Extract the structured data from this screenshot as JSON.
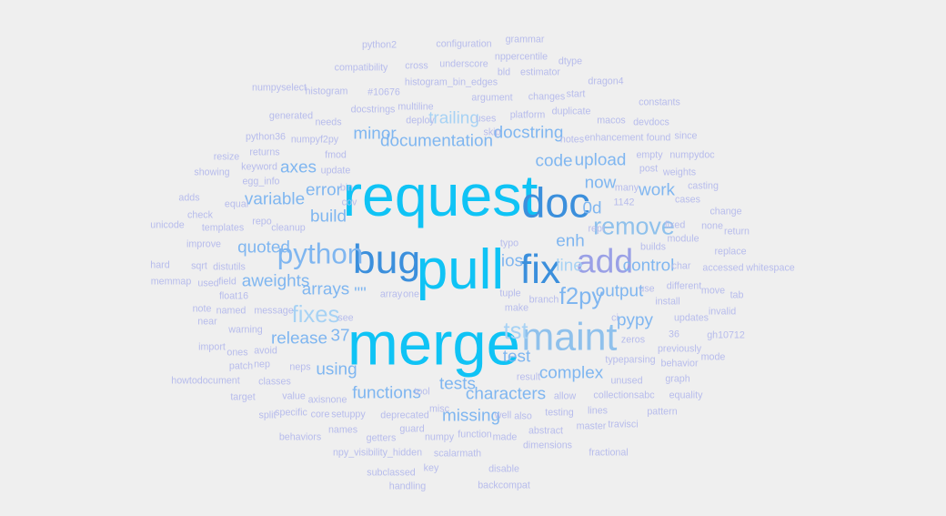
{
  "palette": [
    "#0fc3f5",
    "#3b8fdc",
    "#8fc1ec",
    "#9aa0e6",
    "#7fb6f0",
    "#b7bcec",
    "#a7d2f4",
    "#6f97dd"
  ],
  "words": [
    {
      "text": "merge",
      "w": 1.0,
      "c": 0
    },
    {
      "text": "request",
      "w": 0.95,
      "c": 0
    },
    {
      "text": "pull",
      "w": 0.9,
      "c": 0
    },
    {
      "text": "doc",
      "w": 0.62,
      "c": 1
    },
    {
      "text": "bug",
      "w": 0.58,
      "c": 1
    },
    {
      "text": "fix",
      "w": 0.58,
      "c": 1
    },
    {
      "text": "maint",
      "w": 0.55,
      "c": 2
    },
    {
      "text": "add",
      "w": 0.45,
      "c": 3
    },
    {
      "text": "python",
      "w": 0.35,
      "c": 4
    },
    {
      "text": "remove",
      "w": 0.27,
      "c": 2
    },
    {
      "text": "fixes",
      "w": 0.25,
      "c": 6
    },
    {
      "text": "f2py",
      "w": 0.25,
      "c": 4
    },
    {
      "text": "tst",
      "w": 0.25,
      "c": 6
    },
    {
      "text": "documentation",
      "w": 0.14,
      "c": 4
    },
    {
      "text": "docstring",
      "w": 0.14,
      "c": 4
    },
    {
      "text": "trailing",
      "w": 0.14,
      "c": 6
    },
    {
      "text": "minor",
      "w": 0.14,
      "c": 4
    },
    {
      "text": "upload",
      "w": 0.14,
      "c": 4
    },
    {
      "text": "code",
      "w": 0.14,
      "c": 4
    },
    {
      "text": "axes",
      "w": 0.14,
      "c": 4
    },
    {
      "text": "error",
      "w": 0.14,
      "c": 4
    },
    {
      "text": "variable",
      "w": 0.14,
      "c": 4
    },
    {
      "text": "build",
      "w": 0.14,
      "c": 4
    },
    {
      "text": "now",
      "w": 0.14,
      "c": 4
    },
    {
      "text": "work",
      "w": 0.14,
      "c": 4
    },
    {
      "text": "0d",
      "w": 0.14,
      "c": 4
    },
    {
      "text": "enh",
      "w": 0.14,
      "c": 4
    },
    {
      "text": "quoted",
      "w": 0.14,
      "c": 4
    },
    {
      "text": "aweights",
      "w": 0.14,
      "c": 4
    },
    {
      "text": "arrays",
      "w": 0.14,
      "c": 4
    },
    {
      "text": "control",
      "w": 0.14,
      "c": 4
    },
    {
      "text": "line",
      "w": 0.14,
      "c": 6
    },
    {
      "text": "ios",
      "w": 0.14,
      "c": 4
    },
    {
      "text": "output",
      "w": 0.14,
      "c": 4
    },
    {
      "text": "pypy",
      "w": 0.14,
      "c": 4
    },
    {
      "text": "release",
      "w": 0.14,
      "c": 4
    },
    {
      "text": "37",
      "w": 0.14,
      "c": 4
    },
    {
      "text": "test",
      "w": 0.14,
      "c": 4
    },
    {
      "text": "using",
      "w": 0.14,
      "c": 4
    },
    {
      "text": "complex",
      "w": 0.14,
      "c": 4
    },
    {
      "text": "tests",
      "w": 0.14,
      "c": 4
    },
    {
      "text": "functions",
      "w": 0.14,
      "c": 4
    },
    {
      "text": "characters",
      "w": 0.14,
      "c": 4
    },
    {
      "text": "missing",
      "w": 0.14,
      "c": 4
    },
    {
      "text": "\"\"",
      "w": 0.14,
      "c": 4
    },
    {
      "text": "python2",
      "w": 0.02,
      "c": 5
    },
    {
      "text": "configuration",
      "w": 0.02,
      "c": 5
    },
    {
      "text": "grammar",
      "w": 0.02,
      "c": 5
    },
    {
      "text": "compatibility",
      "w": 0.02,
      "c": 5
    },
    {
      "text": "cross",
      "w": 0.02,
      "c": 5
    },
    {
      "text": "underscore",
      "w": 0.02,
      "c": 5
    },
    {
      "text": "nppercentile",
      "w": 0.02,
      "c": 5
    },
    {
      "text": "dtype",
      "w": 0.02,
      "c": 5
    },
    {
      "text": "bld",
      "w": 0.02,
      "c": 5
    },
    {
      "text": "estimator",
      "w": 0.02,
      "c": 5
    },
    {
      "text": "histogram_bin_edges",
      "w": 0.02,
      "c": 5
    },
    {
      "text": "dragon4",
      "w": 0.02,
      "c": 5
    },
    {
      "text": "numpyselect",
      "w": 0.02,
      "c": 5
    },
    {
      "text": "histogram",
      "w": 0.02,
      "c": 5
    },
    {
      "text": "#10676",
      "w": 0.02,
      "c": 5
    },
    {
      "text": "argument",
      "w": 0.02,
      "c": 5
    },
    {
      "text": "changes",
      "w": 0.02,
      "c": 5
    },
    {
      "text": "start",
      "w": 0.02,
      "c": 5
    },
    {
      "text": "constants",
      "w": 0.02,
      "c": 5
    },
    {
      "text": "multiline",
      "w": 0.02,
      "c": 5
    },
    {
      "text": "docstrings",
      "w": 0.02,
      "c": 5
    },
    {
      "text": "generated",
      "w": 0.02,
      "c": 5
    },
    {
      "text": "needs",
      "w": 0.02,
      "c": 5
    },
    {
      "text": "deploy",
      "w": 0.02,
      "c": 5
    },
    {
      "text": "uses",
      "w": 0.02,
      "c": 5
    },
    {
      "text": "platform",
      "w": 0.02,
      "c": 5
    },
    {
      "text": "duplicate",
      "w": 0.02,
      "c": 5
    },
    {
      "text": "macos",
      "w": 0.02,
      "c": 5
    },
    {
      "text": "devdocs",
      "w": 0.02,
      "c": 5
    },
    {
      "text": "python36",
      "w": 0.02,
      "c": 5
    },
    {
      "text": "numpyf2py",
      "w": 0.02,
      "c": 5
    },
    {
      "text": "skip",
      "w": 0.02,
      "c": 5
    },
    {
      "text": "notes",
      "w": 0.02,
      "c": 5
    },
    {
      "text": "enhancement",
      "w": 0.02,
      "c": 5
    },
    {
      "text": "found",
      "w": 0.02,
      "c": 5
    },
    {
      "text": "since",
      "w": 0.02,
      "c": 5
    },
    {
      "text": "resize",
      "w": 0.02,
      "c": 5
    },
    {
      "text": "returns",
      "w": 0.02,
      "c": 5
    },
    {
      "text": "fmod",
      "w": 0.02,
      "c": 5
    },
    {
      "text": "empty",
      "w": 0.02,
      "c": 5
    },
    {
      "text": "numpydoc",
      "w": 0.02,
      "c": 5
    },
    {
      "text": "showing",
      "w": 0.02,
      "c": 5
    },
    {
      "text": "keyword",
      "w": 0.02,
      "c": 5
    },
    {
      "text": "update",
      "w": 0.02,
      "c": 5
    },
    {
      "text": "post",
      "w": 0.02,
      "c": 5
    },
    {
      "text": "weights",
      "w": 0.02,
      "c": 5
    },
    {
      "text": "egg_info",
      "w": 0.02,
      "c": 5
    },
    {
      "text": "bin",
      "w": 0.02,
      "c": 5
    },
    {
      "text": "many",
      "w": 0.02,
      "c": 5
    },
    {
      "text": "casting",
      "w": 0.02,
      "c": 5
    },
    {
      "text": "adds",
      "w": 0.02,
      "c": 5
    },
    {
      "text": "equal",
      "w": 0.02,
      "c": 5
    },
    {
      "text": "cov",
      "w": 0.02,
      "c": 5
    },
    {
      "text": "1142",
      "w": 0.02,
      "c": 5
    },
    {
      "text": "cases",
      "w": 0.02,
      "c": 5
    },
    {
      "text": "check",
      "w": 0.02,
      "c": 5
    },
    {
      "text": "change",
      "w": 0.02,
      "c": 5
    },
    {
      "text": "unicode",
      "w": 0.02,
      "c": 5
    },
    {
      "text": "templates",
      "w": 0.02,
      "c": 5
    },
    {
      "text": "repo",
      "w": 0.02,
      "c": 5
    },
    {
      "text": "cleanup",
      "w": 0.02,
      "c": 5
    },
    {
      "text": "repr",
      "w": 0.02,
      "c": 5
    },
    {
      "text": "fixed",
      "w": 0.02,
      "c": 5
    },
    {
      "text": "none",
      "w": 0.02,
      "c": 5
    },
    {
      "text": "return",
      "w": 0.02,
      "c": 5
    },
    {
      "text": "improve",
      "w": 0.02,
      "c": 5
    },
    {
      "text": "typo",
      "w": 0.02,
      "c": 5
    },
    {
      "text": "module",
      "w": 0.02,
      "c": 5
    },
    {
      "text": "builds",
      "w": 0.02,
      "c": 5
    },
    {
      "text": "replace",
      "w": 0.02,
      "c": 5
    },
    {
      "text": "hard",
      "w": 0.02,
      "c": 5
    },
    {
      "text": "sqrt",
      "w": 0.02,
      "c": 5
    },
    {
      "text": "distutils",
      "w": 0.02,
      "c": 5
    },
    {
      "text": "char",
      "w": 0.02,
      "c": 5
    },
    {
      "text": "accessed",
      "w": 0.02,
      "c": 5
    },
    {
      "text": "whitespace",
      "w": 0.02,
      "c": 5
    },
    {
      "text": "memmap",
      "w": 0.02,
      "c": 5
    },
    {
      "text": "used",
      "w": 0.02,
      "c": 5
    },
    {
      "text": "field",
      "w": 0.02,
      "c": 5
    },
    {
      "text": "use",
      "w": 0.02,
      "c": 5
    },
    {
      "text": "different",
      "w": 0.02,
      "c": 5
    },
    {
      "text": "move",
      "w": 0.02,
      "c": 5
    },
    {
      "text": "float16",
      "w": 0.02,
      "c": 5
    },
    {
      "text": "array",
      "w": 0.02,
      "c": 5
    },
    {
      "text": "one",
      "w": 0.02,
      "c": 5
    },
    {
      "text": "tuple",
      "w": 0.02,
      "c": 5
    },
    {
      "text": "tab",
      "w": 0.02,
      "c": 5
    },
    {
      "text": "branch",
      "w": 0.02,
      "c": 5
    },
    {
      "text": "install",
      "w": 0.02,
      "c": 5
    },
    {
      "text": "note",
      "w": 0.02,
      "c": 5
    },
    {
      "text": "named",
      "w": 0.02,
      "c": 5
    },
    {
      "text": "message",
      "w": 0.02,
      "c": 5
    },
    {
      "text": "make",
      "w": 0.02,
      "c": 5
    },
    {
      "text": "invalid",
      "w": 0.02,
      "c": 5
    },
    {
      "text": "near",
      "w": 0.02,
      "c": 5
    },
    {
      "text": "see",
      "w": 0.02,
      "c": 5
    },
    {
      "text": "ci",
      "w": 0.02,
      "c": 5
    },
    {
      "text": "updates",
      "w": 0.02,
      "c": 5
    },
    {
      "text": "warning",
      "w": 0.02,
      "c": 5
    },
    {
      "text": "36",
      "w": 0.02,
      "c": 5
    },
    {
      "text": "gh10712",
      "w": 0.02,
      "c": 5
    },
    {
      "text": "zeros",
      "w": 0.02,
      "c": 5
    },
    {
      "text": "import",
      "w": 0.02,
      "c": 5
    },
    {
      "text": "ones",
      "w": 0.02,
      "c": 5
    },
    {
      "text": "avoid",
      "w": 0.02,
      "c": 5
    },
    {
      "text": "previously",
      "w": 0.02,
      "c": 5
    },
    {
      "text": "typeparsing",
      "w": 0.02,
      "c": 5
    },
    {
      "text": "mode",
      "w": 0.02,
      "c": 5
    },
    {
      "text": "patch",
      "w": 0.02,
      "c": 5
    },
    {
      "text": "nep",
      "w": 0.02,
      "c": 5
    },
    {
      "text": "neps",
      "w": 0.02,
      "c": 5
    },
    {
      "text": "behavior",
      "w": 0.02,
      "c": 5
    },
    {
      "text": "howtodocument",
      "w": 0.02,
      "c": 5
    },
    {
      "text": "classes",
      "w": 0.02,
      "c": 5
    },
    {
      "text": "result",
      "w": 0.02,
      "c": 5
    },
    {
      "text": "unused",
      "w": 0.02,
      "c": 5
    },
    {
      "text": "graph",
      "w": 0.02,
      "c": 5
    },
    {
      "text": "target",
      "w": 0.02,
      "c": 5
    },
    {
      "text": "value",
      "w": 0.02,
      "c": 5
    },
    {
      "text": "axisnone",
      "w": 0.02,
      "c": 5
    },
    {
      "text": "tool",
      "w": 0.02,
      "c": 5
    },
    {
      "text": "allow",
      "w": 0.02,
      "c": 5
    },
    {
      "text": "collectionsabc",
      "w": 0.02,
      "c": 5
    },
    {
      "text": "equality",
      "w": 0.02,
      "c": 5
    },
    {
      "text": "split",
      "w": 0.02,
      "c": 5
    },
    {
      "text": "specific",
      "w": 0.02,
      "c": 5
    },
    {
      "text": "core",
      "w": 0.02,
      "c": 5
    },
    {
      "text": "setuppy",
      "w": 0.02,
      "c": 5
    },
    {
      "text": "misc",
      "w": 0.02,
      "c": 5
    },
    {
      "text": "deprecated",
      "w": 0.02,
      "c": 5
    },
    {
      "text": "well",
      "w": 0.02,
      "c": 5
    },
    {
      "text": "also",
      "w": 0.02,
      "c": 5
    },
    {
      "text": "testing",
      "w": 0.02,
      "c": 5
    },
    {
      "text": "lines",
      "w": 0.02,
      "c": 5
    },
    {
      "text": "pattern",
      "w": 0.02,
      "c": 5
    },
    {
      "text": "names",
      "w": 0.02,
      "c": 5
    },
    {
      "text": "guard",
      "w": 0.02,
      "c": 5
    },
    {
      "text": "abstract",
      "w": 0.02,
      "c": 5
    },
    {
      "text": "master",
      "w": 0.02,
      "c": 5
    },
    {
      "text": "travisci",
      "w": 0.02,
      "c": 5
    },
    {
      "text": "behaviors",
      "w": 0.02,
      "c": 5
    },
    {
      "text": "getters",
      "w": 0.02,
      "c": 5
    },
    {
      "text": "numpy",
      "w": 0.02,
      "c": 5
    },
    {
      "text": "function",
      "w": 0.02,
      "c": 5
    },
    {
      "text": "made",
      "w": 0.02,
      "c": 5
    },
    {
      "text": "npy_visibility_hidden",
      "w": 0.02,
      "c": 5
    },
    {
      "text": "scalarmath",
      "w": 0.02,
      "c": 5
    },
    {
      "text": "dimensions",
      "w": 0.02,
      "c": 5
    },
    {
      "text": "fractional",
      "w": 0.02,
      "c": 5
    },
    {
      "text": "subclassed",
      "w": 0.02,
      "c": 5
    },
    {
      "text": "key",
      "w": 0.02,
      "c": 5
    },
    {
      "text": "disable",
      "w": 0.02,
      "c": 5
    },
    {
      "text": "handling",
      "w": 0.02,
      "c": 5
    },
    {
      "text": "backcompat",
      "w": 0.02,
      "c": 5
    }
  ]
}
